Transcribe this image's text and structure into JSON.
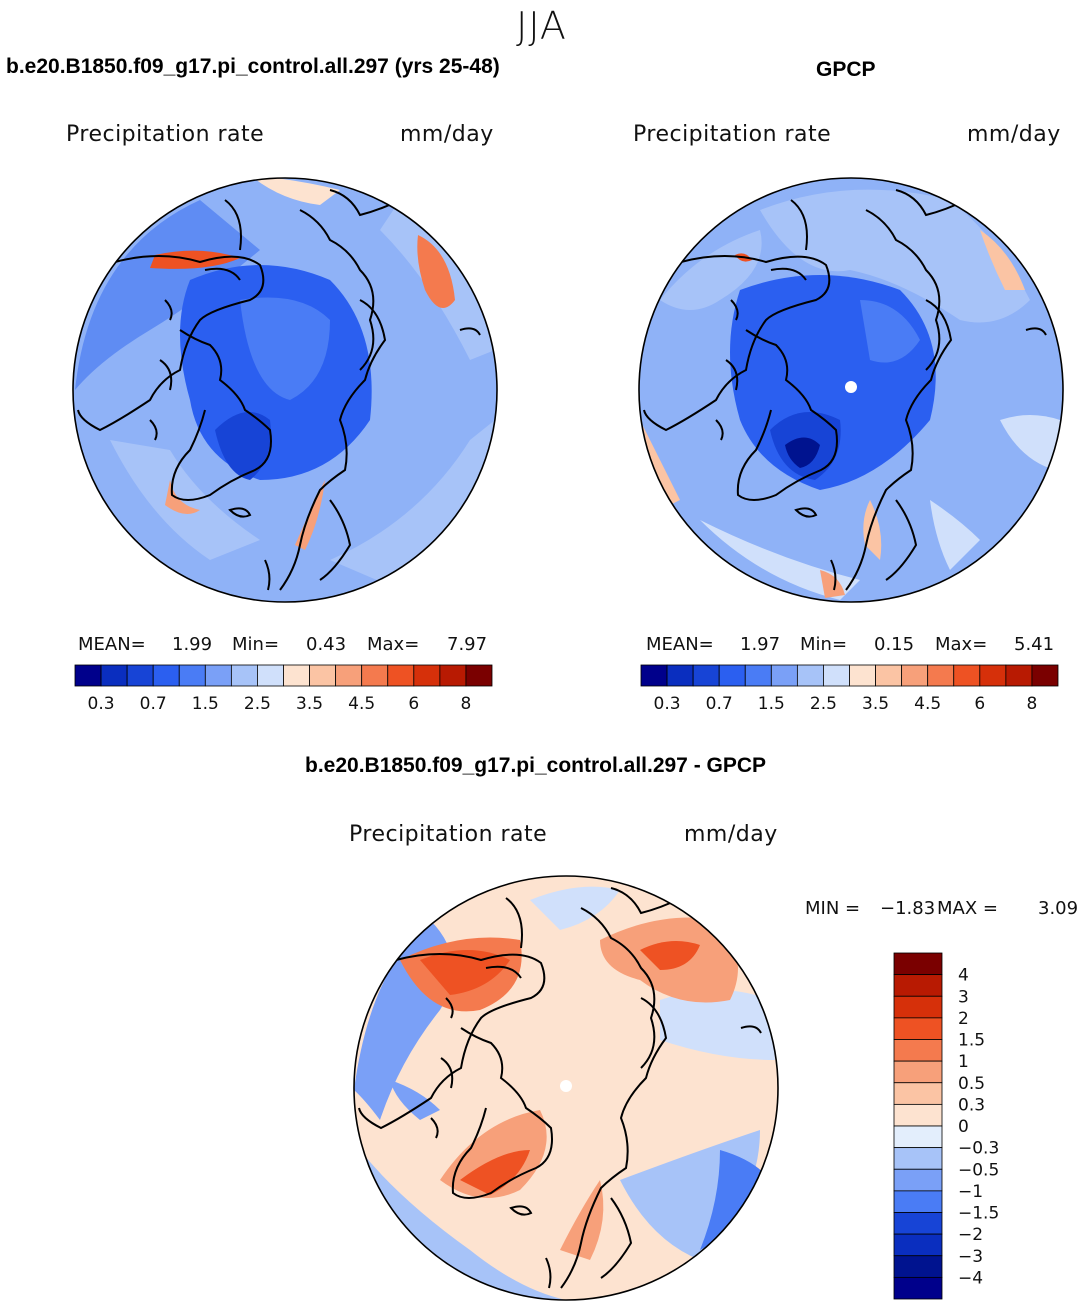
{
  "season": "JJA",
  "panels": {
    "model": {
      "title": "b.e20.B1850.f09_g17.pi_control.all.297 (yrs 25-48)",
      "variable": "Precipitation  rate",
      "units": "mm/day",
      "stats": {
        "mean_label": "MEAN=",
        "mean": "1.99",
        "min_label": "Min=",
        "min": "0.43",
        "max_label": "Max=",
        "max": "7.97"
      }
    },
    "obs": {
      "title": "GPCP",
      "variable": "Precipitation  rate",
      "units": "mm/day",
      "stats": {
        "mean_label": "MEAN=",
        "mean": "1.97",
        "min_label": "Min=",
        "min": "0.15",
        "max_label": "Max=",
        "max": "5.41"
      }
    },
    "diff": {
      "title": "b.e20.B1850.f09_g17.pi_control.all.297 - GPCP",
      "variable": "Precipitation  rate",
      "units": "mm/day",
      "stats": {
        "min_label": "MIN =",
        "min": "−1.83",
        "max_label": "MAX =",
        "max": "3.09"
      }
    }
  },
  "colorbar_main": {
    "colors": [
      "#00008b",
      "#0a2ebf",
      "#1744d6",
      "#2b5ff0",
      "#4a7cf5",
      "#7aa0f7",
      "#a7c3f8",
      "#d0e0fb",
      "#fde3d0",
      "#fbc4a4",
      "#f7a07a",
      "#f47a4e",
      "#ee5223",
      "#d6300a",
      "#b81a02",
      "#7a0000"
    ],
    "tick_labels": [
      "0.3",
      "0.7",
      "1.5",
      "2.5",
      "3.5",
      "4.5",
      "6",
      "8"
    ]
  },
  "colorbar_diff": {
    "colors": [
      "#7a0000",
      "#b81a02",
      "#d6300a",
      "#ee5223",
      "#f47a4e",
      "#f7a07a",
      "#fbc4a4",
      "#fde3d0",
      "#e3eefc",
      "#a7c3f8",
      "#7aa0f7",
      "#4a7cf5",
      "#1744d6",
      "#0a2ebf",
      "#00138f",
      "#00008b"
    ],
    "tick_labels": [
      "4",
      "3",
      "2",
      "1.5",
      "1",
      "0.5",
      "0.3",
      "0",
      "−0.3",
      "−0.5",
      "−1",
      "−1.5",
      "−2",
      "−3",
      "−4"
    ]
  },
  "map_style": {
    "model_base": "#8fb2f7",
    "obs_base": "#8fb2f7",
    "diff_base": "#fde3d0",
    "coast": "#000000"
  }
}
